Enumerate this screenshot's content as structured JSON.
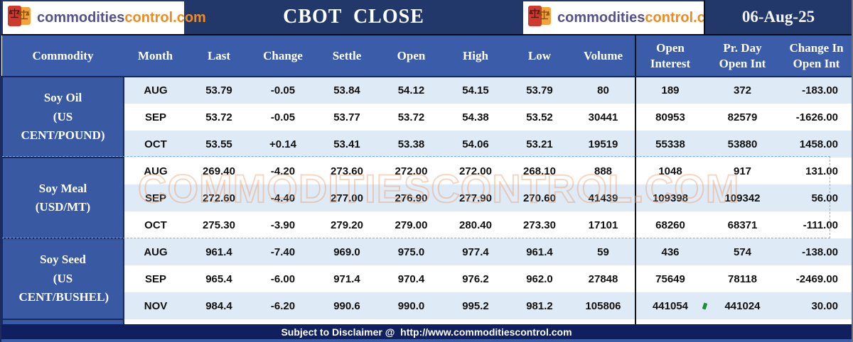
{
  "logo": {
    "part1": "commodities",
    "part2": "control.com"
  },
  "title_bar": {
    "title": "CBOT  CLOSE",
    "date": "06-Aug-25"
  },
  "watermark": "COMMODITIESCONTROL.COM",
  "footer": {
    "text": "Subject to Disclaimer @  http://www.commoditiescontrol.com"
  },
  "colors": {
    "top_band": "#22386B",
    "header_blue": "#3B5CA8",
    "commodity_blue": "#3A59A3",
    "row_light": "#DEEAF6",
    "row_white": "#FFFFFF",
    "footer_navy": "#101F5E",
    "accent_orange": "#F28A1D",
    "logo_purple": "#55508F",
    "divider_black": "#141414",
    "marquee_blue": "#85AEDC",
    "bottom_strip": "#3E5FA7"
  },
  "chart_data": {
    "type": "table",
    "columns": [
      {
        "key": "commodity",
        "label": "Commodity"
      },
      {
        "key": "month",
        "label": "Month"
      },
      {
        "key": "last",
        "label": "Last"
      },
      {
        "key": "change",
        "label": "Change"
      },
      {
        "key": "settle",
        "label": "Settle"
      },
      {
        "key": "open",
        "label": "Open"
      },
      {
        "key": "high",
        "label": "High"
      },
      {
        "key": "low",
        "label": "Low"
      },
      {
        "key": "volume",
        "label": "Volume"
      },
      {
        "key": "open_interest",
        "label": "Open\nInterest"
      },
      {
        "key": "prday_open_int",
        "label": "Pr. Day\nOpen Int"
      },
      {
        "key": "change_open_int",
        "label": "Change In\nOpen Int"
      }
    ],
    "groups": [
      {
        "commodity": "Soy Oil",
        "unit": "(US CENT/POUND)",
        "rows": [
          {
            "month": "AUG",
            "last": "53.79",
            "change": "-0.05",
            "settle": "53.84",
            "open": "54.12",
            "high": "54.15",
            "low": "53.79",
            "volume": "80",
            "open_interest": "189",
            "prday_open_int": "372",
            "change_open_int": "-183.00"
          },
          {
            "month": "SEP",
            "last": "53.72",
            "change": "-0.05",
            "settle": "53.77",
            "open": "53.72",
            "high": "54.38",
            "low": "53.52",
            "volume": "30441",
            "open_interest": "80953",
            "prday_open_int": "82579",
            "change_open_int": "-1626.00"
          },
          {
            "month": "OCT",
            "last": "53.55",
            "change": "+0.14",
            "settle": "53.41",
            "open": "53.38",
            "high": "54.06",
            "low": "53.21",
            "volume": "19519",
            "open_interest": "55338",
            "prday_open_int": "53880",
            "change_open_int": "1458.00"
          }
        ]
      },
      {
        "commodity": "Soy Meal",
        "unit": "(USD/MT)",
        "rows": [
          {
            "month": "AUG",
            "last": "269.40",
            "change": "-4.20",
            "settle": "273.60",
            "open": "272.00",
            "high": "272.00",
            "low": "268.10",
            "volume": "888",
            "open_interest": "1048",
            "prday_open_int": "917",
            "change_open_int": "131.00"
          },
          {
            "month": "SEP",
            "last": "272.60",
            "change": "-4.40",
            "settle": "277.00",
            "open": "276.90",
            "high": "277.90",
            "low": "270.60",
            "volume": "41439",
            "open_interest": "109398",
            "prday_open_int": "109342",
            "change_open_int": "56.00"
          },
          {
            "month": "OCT",
            "last": "275.30",
            "change": "-3.90",
            "settle": "279.20",
            "open": "279.00",
            "high": "280.40",
            "low": "273.30",
            "volume": "17101",
            "open_interest": "68260",
            "prday_open_int": "68371",
            "change_open_int": "-111.00"
          }
        ]
      },
      {
        "commodity": "Soy Seed",
        "unit": "(US CENT/BUSHEL)",
        "rows": [
          {
            "month": "AUG",
            "last": "961.4",
            "change": "-7.40",
            "settle": "969.0",
            "open": "975.0",
            "high": "977.4",
            "low": "961.4",
            "volume": "59",
            "open_interest": "436",
            "prday_open_int": "574",
            "change_open_int": "-138.00"
          },
          {
            "month": "SEP",
            "last": "965.4",
            "change": "-6.00",
            "settle": "971.4",
            "open": "970.4",
            "high": "976.2",
            "low": "962.0",
            "volume": "27848",
            "open_interest": "75649",
            "prday_open_int": "78118",
            "change_open_int": "-2469.00"
          },
          {
            "month": "NOV",
            "last": "984.4",
            "change": "-6.20",
            "settle": "990.6",
            "open": "990.0",
            "high": "995.2",
            "low": "981.2",
            "volume": "105806",
            "open_interest": "441054",
            "prday_open_int": "441024",
            "change_open_int": "30.00"
          }
        ]
      }
    ]
  }
}
